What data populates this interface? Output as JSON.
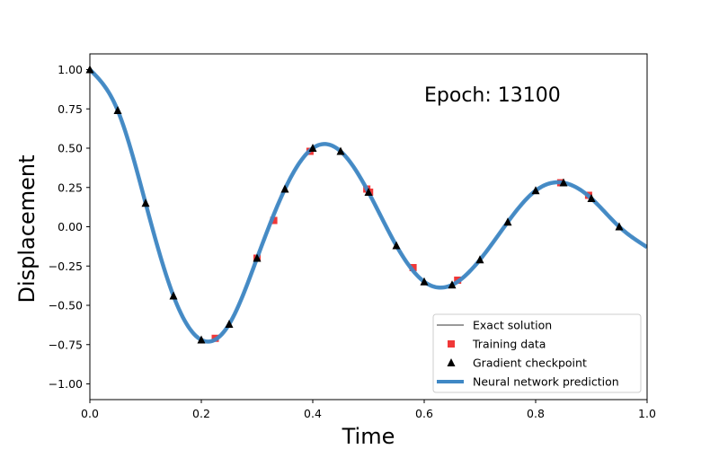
{
  "chart_data": {
    "type": "line",
    "title": "",
    "xlabel": "Time",
    "ylabel": "Displacement",
    "annotation": "Epoch: 13100",
    "xlim": [
      0.0,
      1.0
    ],
    "ylim": [
      -1.1,
      1.1
    ],
    "xticks": [
      "0.0",
      "0.2",
      "0.4",
      "0.6",
      "0.8",
      "1.0"
    ],
    "yticks": [
      "1.00",
      "0.75",
      "0.50",
      "0.25",
      "0.00",
      "−0.25",
      "−0.50",
      "−0.75",
      "−1.00"
    ],
    "grid": false,
    "legend_position": "lower-right",
    "legend": [
      "Exact solution",
      "Training data",
      "Gradient checkpoint",
      "Neural network prediction"
    ],
    "colors": {
      "exact": "#999999",
      "training": "#ee2222",
      "checkpoint": "#000000",
      "prediction": "#3f88c5"
    },
    "series": [
      {
        "name": "Exact solution",
        "x": [
          0.0,
          0.05,
          0.1,
          0.15,
          0.2,
          0.25,
          0.3,
          0.35,
          0.4,
          0.45,
          0.5,
          0.55,
          0.6,
          0.65,
          0.7,
          0.75,
          0.8,
          0.85,
          0.9,
          0.95,
          1.0
        ],
        "y": [
          1.0,
          0.74,
          0.15,
          -0.44,
          -0.72,
          -0.62,
          -0.2,
          0.24,
          0.5,
          0.48,
          0.22,
          -0.12,
          -0.35,
          -0.37,
          -0.21,
          0.03,
          0.23,
          0.28,
          0.18,
          0.0,
          -0.13
        ]
      },
      {
        "name": "Training data",
        "x": [
          0.225,
          0.3,
          0.33,
          0.395,
          0.497,
          0.502,
          0.58,
          0.66,
          0.845,
          0.895
        ],
        "y": [
          -0.71,
          -0.2,
          0.04,
          0.48,
          0.24,
          0.22,
          -0.26,
          -0.34,
          0.28,
          0.2
        ]
      },
      {
        "name": "Gradient checkpoint",
        "x": [
          0.0,
          0.05,
          0.1,
          0.15,
          0.2,
          0.25,
          0.3,
          0.35,
          0.4,
          0.45,
          0.5,
          0.55,
          0.6,
          0.65,
          0.7,
          0.75,
          0.8,
          0.85,
          0.9,
          0.95
        ],
        "y": [
          1.0,
          0.74,
          0.15,
          -0.44,
          -0.72,
          -0.62,
          -0.2,
          0.24,
          0.5,
          0.48,
          0.22,
          -0.12,
          -0.35,
          -0.37,
          -0.21,
          0.03,
          0.23,
          0.28,
          0.18,
          0.0
        ]
      },
      {
        "name": "Neural network prediction",
        "x": [
          0.0,
          0.05,
          0.1,
          0.15,
          0.2,
          0.25,
          0.3,
          0.35,
          0.4,
          0.45,
          0.5,
          0.55,
          0.6,
          0.65,
          0.7,
          0.75,
          0.8,
          0.85,
          0.9,
          0.95,
          1.0
        ],
        "y": [
          1.0,
          0.74,
          0.15,
          -0.44,
          -0.72,
          -0.62,
          -0.2,
          0.24,
          0.5,
          0.48,
          0.22,
          -0.12,
          -0.35,
          -0.37,
          -0.21,
          0.03,
          0.23,
          0.28,
          0.18,
          0.0,
          -0.13
        ]
      }
    ]
  }
}
